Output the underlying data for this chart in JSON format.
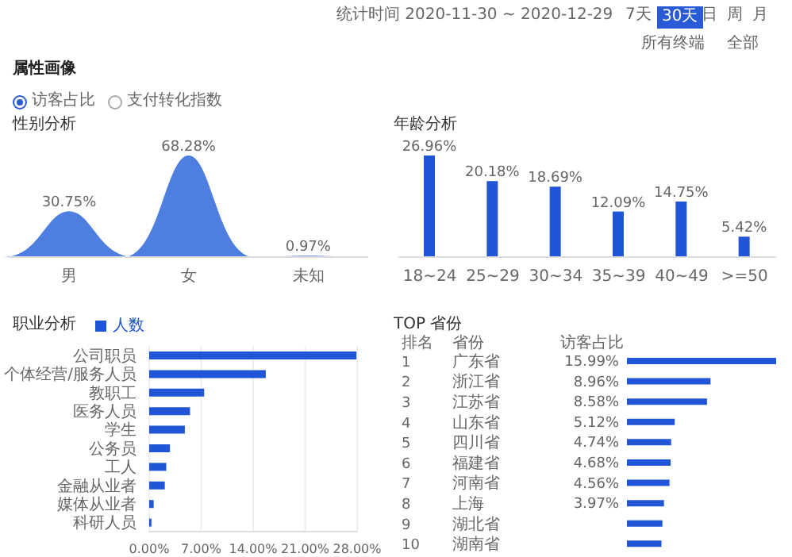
{
  "chart_data": [
    {
      "type": "area",
      "title": "性别分析",
      "categories": [
        "男",
        "女",
        "未知"
      ],
      "values": [
        30.75,
        68.28,
        0.97
      ],
      "value_labels": [
        "30.75%",
        "68.28%",
        "0.97%"
      ],
      "color": "#4d7ee0",
      "annotations": [
        "统计时间 2020-11-30 ~ 2020-12-29",
        "7天",
        "30天",
        "日",
        "周",
        "月",
        "所有终端",
        "全部",
        "属性画像",
        "访客占比",
        "支付转化指数"
      ]
    },
    {
      "type": "bar",
      "title": "年龄分析",
      "categories": [
        "18~24",
        "25~29",
        "30~34",
        "35~39",
        "40~49",
        ">=50"
      ],
      "values": [
        26.96,
        20.18,
        18.69,
        12.09,
        14.75,
        5.42
      ],
      "value_labels": [
        "26.96%",
        "20.18%",
        "18.69%",
        "12.09%",
        "14.75%",
        "5.42%"
      ],
      "color": "#1f55d6"
    },
    {
      "type": "bar",
      "title": "职业分析",
      "orientation": "horizontal",
      "categories": [
        "公司职员",
        "个体经营/服务人员",
        "教职工",
        "医务人员",
        "学生",
        "公务员",
        "工人",
        "金融从业者",
        "媒体从业者",
        "科研人员"
      ],
      "series": [
        {
          "name": "人数",
          "color": "#1f55d6",
          "values": [
            27.9,
            15.7,
            7.4,
            5.5,
            4.8,
            2.8,
            2.3,
            2.1,
            0.6,
            0.3
          ]
        }
      ],
      "xlim": [
        0,
        28
      ],
      "xticks": [
        {
          "value": 0,
          "label": "0.00%"
        },
        {
          "value": 7,
          "label": "7.00%"
        },
        {
          "value": 14,
          "label": "14.00%"
        },
        {
          "value": 21,
          "label": "21.00%"
        },
        {
          "value": 28,
          "label": "28.00%"
        }
      ],
      "grid": "x",
      "legend": "top left"
    },
    {
      "type": "bar",
      "title": "TOP 省份",
      "orientation": "horizontal",
      "ylabel": "省份",
      "xlabel": "访客占比",
      "categories": [
        "广东省",
        "浙江省",
        "江苏省",
        "山东省",
        "四川省",
        "福建省",
        "河南省",
        "上海",
        "湖北省",
        "湖南省"
      ],
      "values": [
        15.99,
        8.96,
        8.58,
        5.12,
        4.74,
        4.68,
        4.56,
        3.97,
        3.8,
        3.7
      ],
      "value_labels": [
        "15.99%",
        "8.96%",
        "8.58%",
        "5.12%",
        "4.74%",
        "4.68%",
        "4.56%",
        "3.97%",
        null,
        null
      ],
      "color": "#1f55d6",
      "annotations": [
        "排名",
        "1",
        "2",
        "3",
        "4",
        "5",
        "6",
        "7",
        "8",
        "9",
        "10"
      ]
    }
  ]
}
